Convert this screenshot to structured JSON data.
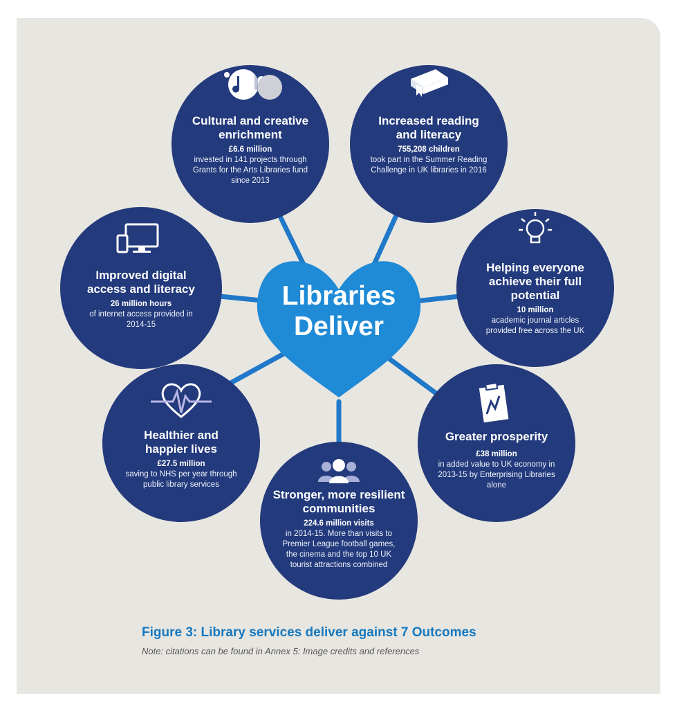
{
  "center": {
    "line1": "Libraries",
    "line2": "Deliver"
  },
  "outcomes": [
    {
      "title": "Cultural and creative enrichment",
      "stat": "£6.6 million",
      "desc": "invested in 141 projects through Grants for the Arts Libraries fund since 2013",
      "icon": "paint-splash-hand-icon"
    },
    {
      "title": "Increased reading and literacy",
      "stat": "755,208 children",
      "desc": "took part in the Summer Reading Challenge in UK libraries in 2016",
      "icon": "book-icon"
    },
    {
      "title": "Improved digital access and literacy",
      "stat": "26 million hours",
      "desc": "of internet access provided in 2014-15",
      "icon": "devices-icon"
    },
    {
      "title": "Helping everyone achieve their full potential",
      "stat": "10 million",
      "desc": "academic journal articles provided free across the UK",
      "icon": "lightbulb-icon"
    },
    {
      "title": "Healthier and happier lives",
      "stat": "£27.5 million",
      "desc": "saving to NHS per year through public library services",
      "icon": "heartbeat-icon"
    },
    {
      "title": "Greater prosperity",
      "stat": "£38 million",
      "desc": "in added value to UK economy in 2013-15 by Enterprising Libraries alone",
      "icon": "clipboard-chart-icon"
    },
    {
      "title": "Stronger, more resilient communities",
      "stat": "224.6 million visits",
      "desc": "in 2014-15. More than visits to Premier League football games, the cinema and the top 10 UK tourist attractions combined",
      "icon": "people-group-icon"
    }
  ],
  "caption": "Figure 3: Library services deliver against 7 Outcomes",
  "note": "Note: citations can be found in Annex 5: Image credits and references",
  "colors": {
    "circle": "#233a7c",
    "heart": "#1f8ad6",
    "connector": "#1a6fc0",
    "panel": "#e8e6e0",
    "caption": "#1679c0"
  }
}
